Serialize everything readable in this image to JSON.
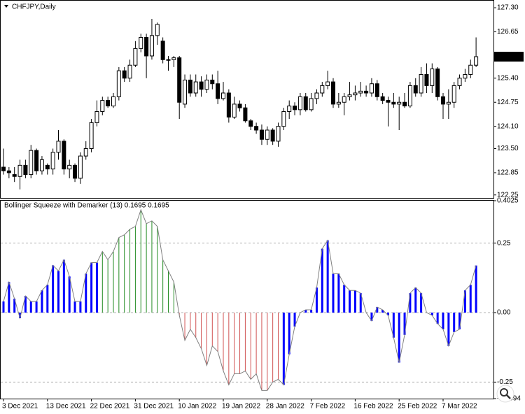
{
  "chart_data": [
    {
      "type": "candlestick",
      "title": "CHFJPY,Daily",
      "categories": [
        "3 Dec 2021",
        null,
        null,
        null,
        null,
        null,
        null,
        null,
        "13 Dec 2021",
        null,
        null,
        null,
        null,
        null,
        null,
        null,
        "22 Dec 2021",
        null,
        null,
        null,
        null,
        null,
        null,
        null,
        "31 Dec 2021",
        null,
        null,
        null,
        null,
        null,
        null,
        null,
        "10 Jan 2022",
        null,
        null,
        null,
        null,
        null,
        null,
        null,
        "19 Jan 2022",
        null,
        null,
        null,
        null,
        null,
        null,
        null,
        "28 Jan 2022",
        null,
        null,
        null,
        null,
        null,
        null,
        null,
        "7 Feb 2022",
        null,
        null,
        null,
        null,
        null,
        null,
        null,
        "16 Feb 2022",
        null,
        null,
        null,
        null,
        null,
        null,
        null,
        "25 Feb 2022",
        null,
        null,
        null,
        null,
        null,
        null,
        null,
        "7 Mar 2022",
        null,
        null,
        null,
        null,
        null,
        null
      ],
      "open": [
        123.0,
        122.9,
        122.8,
        122.75,
        123.05,
        122.8,
        123.45,
        122.9,
        123.05,
        122.95,
        123.4,
        123.7,
        122.95,
        123.05,
        122.7,
        123.3,
        123.5,
        124.2,
        124.5,
        124.8,
        124.65,
        124.9,
        125.6,
        125.4,
        125.75,
        126.2,
        126.5,
        126.0,
        126.55,
        126.4,
        125.9,
        125.9,
        125.95,
        124.7,
        125.35,
        125.0,
        125.3,
        125.1,
        125.35,
        125.25,
        124.85,
        125.0,
        124.35,
        124.7,
        124.6,
        124.25,
        124.1,
        124.0,
        123.75,
        124.0,
        123.7,
        124.1,
        124.5,
        124.65,
        124.55,
        124.9,
        124.55,
        124.85,
        125.0,
        125.2,
        125.3,
        124.7,
        124.75,
        124.9,
        124.95,
        125.0,
        125.05,
        125.0,
        125.25,
        124.9,
        124.8,
        124.75,
        124.7,
        124.75,
        124.65,
        125.2,
        125.0,
        125.5,
        125.2,
        125.65,
        124.9,
        124.7,
        124.75,
        125.2,
        125.4,
        125.5,
        125.75
      ],
      "high": [
        123.5,
        123.0,
        123.0,
        123.2,
        123.2,
        123.6,
        123.5,
        123.3,
        123.1,
        123.5,
        124.0,
        123.75,
        123.2,
        123.1,
        123.4,
        123.7,
        124.3,
        124.8,
        124.9,
        124.9,
        125.0,
        125.7,
        125.7,
        125.9,
        126.4,
        126.6,
        126.6,
        127.0,
        126.9,
        126.5,
        126.0,
        126.0,
        126.0,
        125.5,
        125.5,
        125.5,
        125.45,
        125.5,
        125.5,
        125.6,
        125.3,
        125.1,
        124.9,
        124.8,
        124.7,
        124.3,
        124.2,
        124.15,
        124.1,
        124.05,
        124.2,
        124.6,
        124.8,
        124.75,
        125.0,
        125.0,
        125.0,
        125.1,
        125.3,
        125.6,
        125.4,
        125.0,
        125.0,
        125.3,
        125.2,
        125.3,
        125.2,
        125.4,
        125.35,
        125.0,
        124.9,
        125.0,
        124.9,
        125.0,
        125.3,
        125.4,
        125.7,
        125.8,
        125.8,
        125.7,
        125.0,
        125.1,
        125.3,
        125.5,
        125.65,
        125.9,
        126.5
      ],
      "low": [
        122.8,
        122.7,
        122.6,
        122.4,
        122.7,
        122.7,
        122.8,
        122.8,
        122.8,
        122.8,
        123.2,
        122.8,
        122.7,
        122.6,
        122.55,
        123.2,
        123.4,
        124.1,
        124.4,
        124.6,
        124.6,
        124.8,
        125.3,
        125.3,
        125.7,
        126.1,
        125.4,
        125.9,
        126.3,
        125.8,
        125.6,
        125.7,
        124.3,
        124.6,
        124.9,
        124.9,
        124.9,
        125.0,
        125.1,
        124.7,
        124.8,
        124.2,
        124.3,
        124.5,
        124.2,
        124.0,
        123.9,
        123.6,
        123.6,
        123.6,
        123.55,
        124.0,
        124.3,
        124.4,
        124.4,
        124.5,
        124.5,
        124.7,
        124.9,
        125.1,
        124.6,
        124.6,
        124.4,
        124.8,
        124.8,
        124.9,
        124.9,
        124.9,
        124.8,
        124.7,
        124.1,
        124.6,
        124.0,
        124.6,
        124.6,
        124.9,
        124.9,
        125.0,
        125.0,
        124.8,
        124.3,
        124.3,
        124.6,
        125.1,
        125.3,
        125.4,
        125.7
      ],
      "close": [
        122.9,
        122.85,
        122.75,
        123.05,
        122.8,
        123.45,
        122.9,
        123.2,
        122.95,
        123.4,
        123.7,
        122.95,
        123.05,
        122.7,
        123.3,
        123.5,
        124.2,
        124.5,
        124.8,
        124.65,
        124.9,
        125.6,
        125.4,
        125.75,
        126.2,
        126.5,
        126.0,
        126.55,
        126.85,
        125.9,
        125.9,
        125.95,
        124.75,
        125.35,
        125.0,
        125.3,
        125.1,
        125.35,
        125.25,
        124.85,
        125.0,
        124.35,
        124.7,
        124.6,
        124.25,
        124.1,
        124.0,
        123.75,
        124.0,
        123.7,
        124.1,
        124.5,
        124.65,
        124.55,
        124.9,
        124.55,
        124.85,
        125.0,
        125.2,
        125.3,
        124.7,
        124.75,
        124.9,
        124.95,
        125.0,
        125.05,
        125.0,
        125.25,
        124.9,
        124.8,
        124.75,
        124.7,
        124.75,
        124.65,
        125.2,
        125.0,
        125.5,
        125.2,
        125.65,
        124.9,
        124.7,
        124.75,
        125.2,
        125.4,
        125.5,
        125.75,
        125.98
      ],
      "ylim": [
        122.17,
        127.49
      ],
      "yticks": [
        {
          "value": 127.3,
          "label": "127.30"
        },
        126.65,
        {
          "value": 125.4,
          "label": "125.40"
        },
        124.75,
        {
          "value": 124.1,
          "label": "124.10"
        },
        {
          "value": 123.5,
          "label": "123.50"
        },
        122.85,
        122.25
      ],
      "last_price": 125.98,
      "up_color": "#ffffff",
      "down_color": "#000000",
      "edge_color": "#000000"
    },
    {
      "type": "bar",
      "title": "Bollinger Squeeze with Demarker (13) 0.1695 0.1695",
      "values": [
        0.04,
        0.11,
        0.05,
        -0.02,
        0.06,
        0.04,
        0.04,
        0.08,
        0.1,
        0.17,
        0.15,
        0.19,
        0.13,
        0.04,
        0.04,
        0.14,
        0.18,
        0.18,
        0.22,
        0.19,
        0.22,
        0.27,
        0.28,
        0.3,
        0.31,
        0.37,
        0.32,
        0.33,
        0.31,
        0.19,
        0.15,
        0.11,
        -0.01,
        -0.1,
        -0.06,
        -0.09,
        -0.13,
        -0.19,
        -0.12,
        -0.14,
        -0.21,
        -0.26,
        -0.22,
        -0.22,
        -0.21,
        -0.24,
        -0.22,
        -0.28,
        -0.28,
        -0.25,
        -0.24,
        -0.26,
        -0.15,
        -0.05,
        0.0,
        0.01,
        0.01,
        0.09,
        0.23,
        0.26,
        0.14,
        0.14,
        0.1,
        0.08,
        0.08,
        0.07,
        0.0,
        -0.03,
        0.02,
        0.01,
        -0.01,
        -0.09,
        -0.18,
        -0.08,
        0.07,
        0.09,
        0.07,
        0.0,
        -0.01,
        -0.04,
        -0.06,
        -0.12,
        -0.07,
        -0.06,
        0.08,
        0.1,
        0.1695
      ],
      "bar_colors": [
        "#0000ff",
        "#0000ff",
        "#0000ff",
        "#0000ff",
        "#0000ff",
        "#0000ff",
        "#0000ff",
        "#0000ff",
        "#0000ff",
        "#0000ff",
        "#0000ff",
        "#0000ff",
        "#0000ff",
        "#0000ff",
        "#0000ff",
        "#0000ff",
        "#0000ff",
        "#0000ff",
        "#228b22",
        "#228b22",
        "#228b22",
        "#228b22",
        "#228b22",
        "#228b22",
        "#228b22",
        "#228b22",
        "#228b22",
        "#228b22",
        "#228b22",
        "#228b22",
        "#228b22",
        "#228b22",
        "#d05050",
        "#d05050",
        "#d05050",
        "#d05050",
        "#d05050",
        "#d05050",
        "#d05050",
        "#d05050",
        "#d05050",
        "#d05050",
        "#d05050",
        "#d05050",
        "#d05050",
        "#d05050",
        "#d05050",
        "#d05050",
        "#d05050",
        "#d05050",
        "#d05050",
        "#0000ff",
        "#0000ff",
        "#0000ff",
        "#0000ff",
        "#0000ff",
        "#0000ff",
        "#0000ff",
        "#0000ff",
        "#0000ff",
        "#0000ff",
        "#0000ff",
        "#0000ff",
        "#0000ff",
        "#0000ff",
        "#0000ff",
        "#0000ff",
        "#0000ff",
        "#0000ff",
        "#0000ff",
        "#0000ff",
        "#0000ff",
        "#0000ff",
        "#0000ff",
        "#0000ff",
        "#0000ff",
        "#0000ff",
        "#0000ff",
        "#0000ff",
        "#0000ff",
        "#0000ff",
        "#0000ff",
        "#0000ff",
        "#0000ff",
        "#0000ff",
        "#0000ff",
        "#0000ff"
      ],
      "line_color": "#808080",
      "ylim": [
        -0.3094,
        0.4025
      ],
      "yticks": [
        0.4025,
        0.25,
        {
          "value": 0,
          "label": "0.00"
        },
        -0.25,
        -0.3094
      ],
      "grid": true
    }
  ]
}
